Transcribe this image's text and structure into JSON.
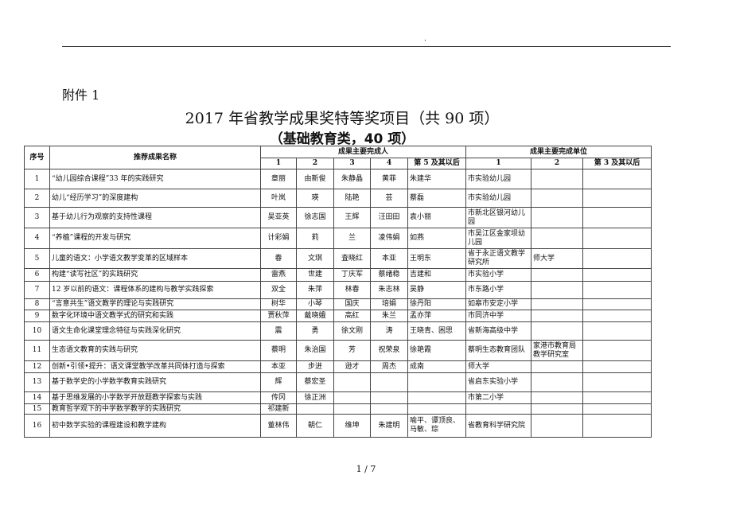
{
  "header_mark": ".",
  "attachment": "附件 1",
  "title": "2017 年省教学成果奖特等奖项目（共 90 项）",
  "subtitle": "（基础教育类，40 项）",
  "table": {
    "headers": {
      "seq": "序号",
      "name": "推荐成果名称",
      "persons": "成果主要完成人",
      "units": "成果主要完成单位",
      "p_cols": [
        "1",
        "2",
        "3",
        "4",
        "第 5 及其以后"
      ],
      "u_cols": [
        "1",
        "2",
        "第 3 及其以后"
      ]
    },
    "rows": [
      {
        "seq": "1",
        "name": "“幼儿园综合课程”33 年的实践研究",
        "p": [
          "章丽",
          "由新俊",
          "朱静晶",
          "黄菲",
          "朱建华"
        ],
        "u": [
          "市实验幼儿园",
          "",
          ""
        ]
      },
      {
        "seq": "2",
        "name": "幼儿“经历学习”的深度建构",
        "p": [
          "叶岚",
          "瑛",
          "陆艳",
          "芸",
          "蔡磊"
        ],
        "u": [
          "市实验幼儿园",
          "",
          ""
        ]
      },
      {
        "seq": "3",
        "name": "基于幼儿行为观察的支持性课程",
        "p": [
          "吴亚英",
          "徐志国",
          "王辉",
          "汪田田",
          "袁小丽"
        ],
        "u": [
          "市新北区银河幼儿园",
          "",
          ""
        ]
      },
      {
        "seq": "4",
        "name": "“养植”课程的开发与研究",
        "p": [
          "计彩娟",
          "莉",
          "兰",
          "凌伟娟",
          "如燕"
        ],
        "u": [
          "市吴江区金家坝幼儿园",
          "",
          ""
        ]
      },
      {
        "seq": "5",
        "name": "儿童的语文：小学语文教学变革的区域样本",
        "p": [
          "春",
          "文琪",
          "査晓红",
          "本亚",
          "王明东"
        ],
        "u": [
          "省于永正语文教学研究所",
          "师大学",
          ""
        ]
      },
      {
        "seq": "6",
        "name": "构建“读写社区”的实践研究",
        "p": [
          "雷燕",
          "世建",
          "丁庆军",
          "蔡绪稳",
          "吉建和"
        ],
        "u": [
          "市实验小学",
          "",
          ""
        ]
      },
      {
        "seq": "7",
        "name": "12 岁以前的语文：课程体系的建构与教学实践探索",
        "p": [
          "双全",
          "朱萍",
          "林春",
          "朱志林",
          "吴静"
        ],
        "u": [
          "市东路小学",
          "",
          ""
        ]
      },
      {
        "seq": "8",
        "name": "“言意共生”语文教学的理论与实践研究",
        "p": [
          "树华",
          "小琴",
          "国庆",
          "培娟",
          "徐丹阳"
        ],
        "u": [
          "如皋市安定小学",
          "",
          ""
        ]
      },
      {
        "seq": "9",
        "name": "数字化环境中语文教学式的研究和实践",
        "p": [
          "贾秋萍",
          "戴晓娥",
          "高红",
          "朱兰",
          "孟亦萍"
        ],
        "u": [
          "市同济中学",
          "",
          ""
        ]
      },
      {
        "seq": "10",
        "name": "语文生命化课堂理念特征与实践深化研究",
        "p": [
          "震",
          "勇",
          "徐文刚",
          "涛",
          "王晓青、困思"
        ],
        "u": [
          "省新海高级中学",
          "",
          ""
        ]
      },
      {
        "seq": "11",
        "name": "生态语文教育的实践与研究",
        "p": [
          "蔡明",
          "朱治国",
          "芳",
          "祝荣泉",
          "徐艳霞"
        ],
        "u": [
          "蔡明生态教育团队",
          "家港市教育局教学研究室",
          ""
        ]
      },
      {
        "seq": "12",
        "name": "创新•引领•提升：语文课堂教学改革共同体打造与探索",
        "p": [
          "本亚",
          "步进",
          "逊才",
          "周杰",
          "成南"
        ],
        "u": [
          "师大学",
          "",
          ""
        ]
      },
      {
        "seq": "13",
        "name": "基于数学史的小学数学教育实践研究",
        "p": [
          "辉",
          "蔡宏圣",
          "",
          "",
          ""
        ],
        "u": [
          "省启东实验小学",
          "",
          ""
        ]
      },
      {
        "seq": "14",
        "name": "基于思维发展的小学数学开放题教学探索与实践",
        "p": [
          "传冈",
          "徐正洲",
          "",
          "",
          ""
        ],
        "u": [
          "市第二小学",
          "",
          ""
        ]
      },
      {
        "seq": "15",
        "name": "教育哲学观下的中学数学教学的实践研究",
        "p": [
          "祁建新",
          "",
          "",
          "",
          ""
        ],
        "u": [
          "",
          "",
          ""
        ]
      },
      {
        "seq": "16",
        "name": "初中数学实验的课程建设和教学建构",
        "p": [
          "董林伟",
          "朝仁",
          "维坤",
          "朱建明",
          "喻平、谭顶良、马敏、琮"
        ],
        "u": [
          "省教育科学研究院",
          "",
          ""
        ]
      }
    ]
  },
  "footer": "1 / 7"
}
